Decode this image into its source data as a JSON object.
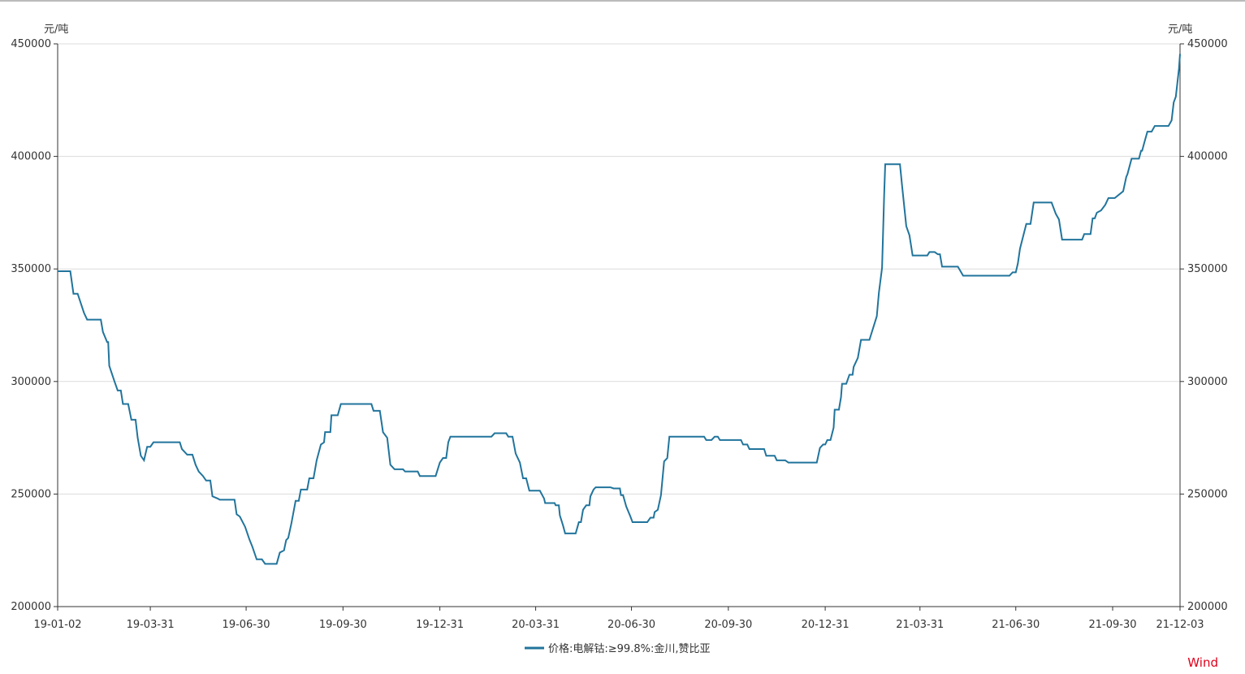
{
  "chart_data": {
    "type": "line",
    "y_label": "元/吨",
    "y2_label": "元/吨",
    "source": "Wind",
    "xlim": [
      "19-01-02",
      "21-12-03"
    ],
    "xticks": [
      "19-01-02",
      "19-03-31",
      "19-06-30",
      "19-09-30",
      "19-12-31",
      "20-03-31",
      "20-06-30",
      "20-09-30",
      "20-12-31",
      "21-03-31",
      "21-06-30",
      "21-09-30",
      "21-12-03"
    ],
    "ylim": [
      200000,
      450000
    ],
    "yticks": [
      200000,
      250000,
      300000,
      350000,
      400000,
      450000
    ],
    "y2lim": [
      200000,
      450000
    ],
    "y2ticks": [
      200000,
      250000,
      300000,
      350000,
      400000,
      450000
    ],
    "grid": true,
    "legend": "bottom",
    "x": [
      "19-01-02",
      "19-01-14",
      "19-01-17",
      "19-01-21",
      "19-01-27",
      "19-01-30",
      "19-02-12",
      "19-02-14",
      "19-02-18",
      "19-02-19",
      "19-02-20",
      "19-02-25",
      "19-02-28",
      "19-03-03",
      "19-03-05",
      "19-03-10",
      "19-03-13",
      "19-03-17",
      "19-03-19",
      "19-03-22",
      "19-03-25",
      "19-03-28",
      "19-03-31",
      "19-04-03",
      "19-04-28",
      "19-04-30",
      "19-05-05",
      "19-05-10",
      "19-05-13",
      "19-05-16",
      "19-05-20",
      "19-05-23",
      "19-05-27",
      "19-05-29",
      "19-06-03",
      "19-06-05",
      "19-06-19",
      "19-06-21",
      "19-06-24",
      "19-06-29",
      "19-07-03",
      "19-07-06",
      "19-07-10",
      "19-07-15",
      "19-07-18",
      "19-07-29",
      "19-08-01",
      "19-08-05",
      "19-08-07",
      "19-08-09",
      "19-08-12",
      "19-08-16",
      "19-08-19",
      "19-08-21",
      "19-08-27",
      "19-08-29",
      "19-09-02",
      "19-09-05",
      "19-09-09",
      "19-09-12",
      "19-09-13",
      "19-09-18",
      "19-09-19",
      "19-09-25",
      "19-09-28",
      "19-10-27",
      "19-10-29",
      "19-11-04",
      "19-11-07",
      "19-11-11",
      "19-11-14",
      "19-11-18",
      "19-11-26",
      "19-11-28",
      "19-12-10",
      "19-12-12",
      "19-12-27",
      "19-12-31",
      "20-01-03",
      "20-01-06",
      "20-01-08",
      "20-01-10",
      "20-02-18",
      "20-02-21",
      "20-03-03",
      "20-03-05",
      "20-03-09",
      "20-03-12",
      "20-03-16",
      "20-03-19",
      "20-03-22",
      "20-03-25",
      "20-04-04",
      "20-04-08",
      "20-04-09",
      "20-04-18",
      "20-04-19",
      "20-04-22",
      "20-04-23",
      "20-04-26",
      "20-04-28",
      "20-05-08",
      "20-05-11",
      "20-05-13",
      "20-05-15",
      "20-05-18",
      "20-05-21",
      "20-05-22",
      "20-05-25",
      "20-05-27",
      "20-06-10",
      "20-06-13",
      "20-06-19",
      "20-06-20",
      "20-06-22",
      "20-06-25",
      "20-06-29",
      "20-07-01",
      "20-07-15",
      "20-07-18",
      "20-07-21",
      "20-07-22",
      "20-07-25",
      "20-07-28",
      "20-07-31",
      "20-08-03",
      "20-08-05",
      "20-09-07",
      "20-09-09",
      "20-09-14",
      "20-09-17",
      "20-09-20",
      "20-09-22",
      "20-10-12",
      "20-10-14",
      "20-10-18",
      "20-10-20",
      "20-11-03",
      "20-11-05",
      "20-11-13",
      "20-11-15",
      "20-11-23",
      "20-11-26",
      "20-12-23",
      "20-12-26",
      "20-12-29",
      "20-12-31",
      "21-01-02",
      "21-01-05",
      "21-01-08",
      "21-01-09",
      "21-01-13",
      "21-01-15",
      "21-01-16",
      "21-01-20",
      "21-01-23",
      "21-01-26",
      "21-01-27",
      "21-01-31",
      "21-02-03",
      "21-02-11",
      "21-02-18",
      "21-02-20",
      "21-02-23",
      "21-02-25",
      "21-02-26",
      "21-03-12",
      "21-03-14",
      "21-03-18",
      "21-03-21",
      "21-03-24",
      "21-04-07",
      "21-04-09",
      "21-04-14",
      "21-04-17",
      "21-04-19",
      "21-04-21",
      "21-05-06",
      "21-05-11",
      "21-06-24",
      "21-06-27",
      "21-06-30",
      "21-07-02",
      "21-07-04",
      "21-07-07",
      "21-07-10",
      "21-07-14",
      "21-07-17",
      "21-08-03",
      "21-08-07",
      "21-08-10",
      "21-08-13",
      "21-09-01",
      "21-09-03",
      "21-09-09",
      "21-09-11",
      "21-09-13",
      "21-09-15",
      "21-09-19",
      "21-09-23",
      "21-09-26",
      "21-10-02",
      "21-10-10",
      "21-10-13",
      "21-10-14",
      "21-10-18",
      "21-10-25",
      "21-10-27",
      "21-10-28",
      "21-10-30",
      "21-11-02",
      "21-11-06",
      "21-11-09",
      "21-11-22",
      "21-11-25",
      "21-11-27",
      "21-11-29",
      "21-12-02",
      "21-12-03"
    ],
    "series": [
      {
        "name": "价格:电解钴:≥99.8%:金川,赞比亚",
        "color": "#21749c",
        "values": [
          349000,
          349000,
          339000,
          339000,
          330500,
          327500,
          327500,
          322000,
          317500,
          317500,
          307000,
          300000,
          296000,
          296000,
          290000,
          290000,
          283000,
          283000,
          275000,
          267000,
          265000,
          271000,
          271000,
          273000,
          273000,
          270000,
          267500,
          267500,
          263000,
          260000,
          258000,
          256000,
          256000,
          249000,
          248000,
          247500,
          247500,
          241000,
          240000,
          235500,
          230000,
          226500,
          221000,
          221000,
          219000,
          219000,
          224000,
          225000,
          229500,
          230500,
          237000,
          247000,
          247000,
          252000,
          252000,
          257000,
          257000,
          265000,
          272000,
          273000,
          277500,
          277500,
          285000,
          285000,
          290000,
          290000,
          287000,
          287000,
          277500,
          275000,
          263000,
          261000,
          261000,
          260000,
          260000,
          258000,
          258000,
          264000,
          266000,
          266000,
          273000,
          275500,
          275500,
          277000,
          277000,
          275500,
          275500,
          268000,
          264000,
          257000,
          257000,
          251500,
          251500,
          248000,
          246000,
          246000,
          245000,
          245000,
          240500,
          236000,
          232500,
          232500,
          237500,
          237500,
          243000,
          245000,
          245000,
          249000,
          252000,
          253000,
          253000,
          252500,
          252500,
          249500,
          249500,
          244500,
          240000,
          237500,
          237500,
          239500,
          239500,
          242000,
          243000,
          249500,
          264500,
          266000,
          275500,
          275500,
          274000,
          274000,
          275500,
          275500,
          274000,
          274000,
          272000,
          272000,
          270000,
          270000,
          267000,
          267000,
          265000,
          265000,
          264000,
          264000,
          270500,
          272000,
          272000,
          274000,
          274000,
          279500,
          287500,
          287500,
          293000,
          299000,
          299000,
          303000,
          303000,
          306500,
          310500,
          318500,
          318500,
          329000,
          339500,
          350500,
          383000,
          396500,
          396500,
          387000,
          369000,
          365000,
          356000,
          356000,
          357500,
          357500,
          356500,
          356500,
          351000,
          351000,
          347000,
          347000,
          348500,
          348500,
          352500,
          359000,
          364500,
          370000,
          370000,
          379500,
          379500,
          374500,
          372000,
          363000,
          363000,
          365500,
          365500,
          372500,
          372500,
          375000,
          376000,
          378500,
          381500,
          381500,
          384500,
          391000,
          392000,
          399000,
          399000,
          402500,
          402500,
          406000,
          411000,
          411000,
          413500,
          413500,
          416000,
          424000,
          426500,
          439000,
          445500
        ]
      }
    ]
  }
}
